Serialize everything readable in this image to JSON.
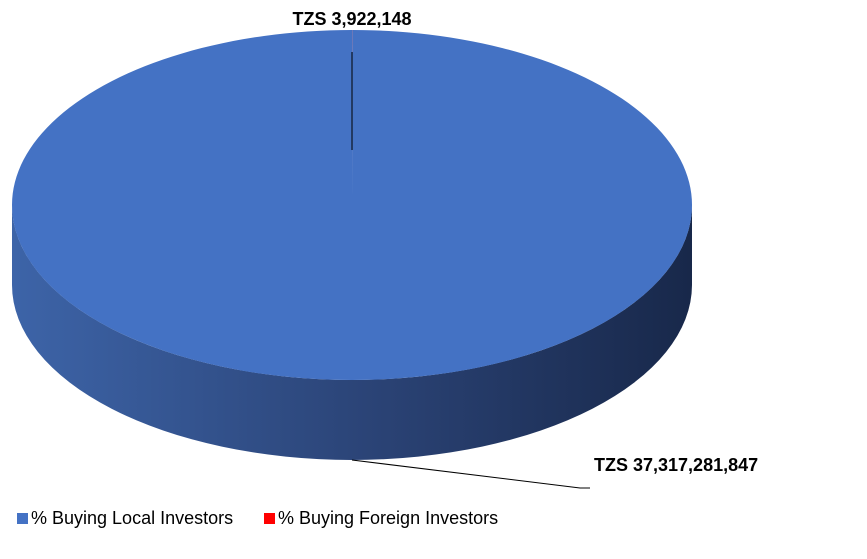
{
  "chart_data": {
    "type": "pie",
    "categories": [
      "% Buying Local Investors",
      "% Buying Foreign Investors"
    ],
    "values": [
      37317281847,
      3922148
    ],
    "value_labels": [
      "TZS 37,317,281,847",
      "TZS 3,922,148"
    ],
    "colors": [
      "#4472c4",
      "#ff0000"
    ],
    "legend": "bottom"
  }
}
